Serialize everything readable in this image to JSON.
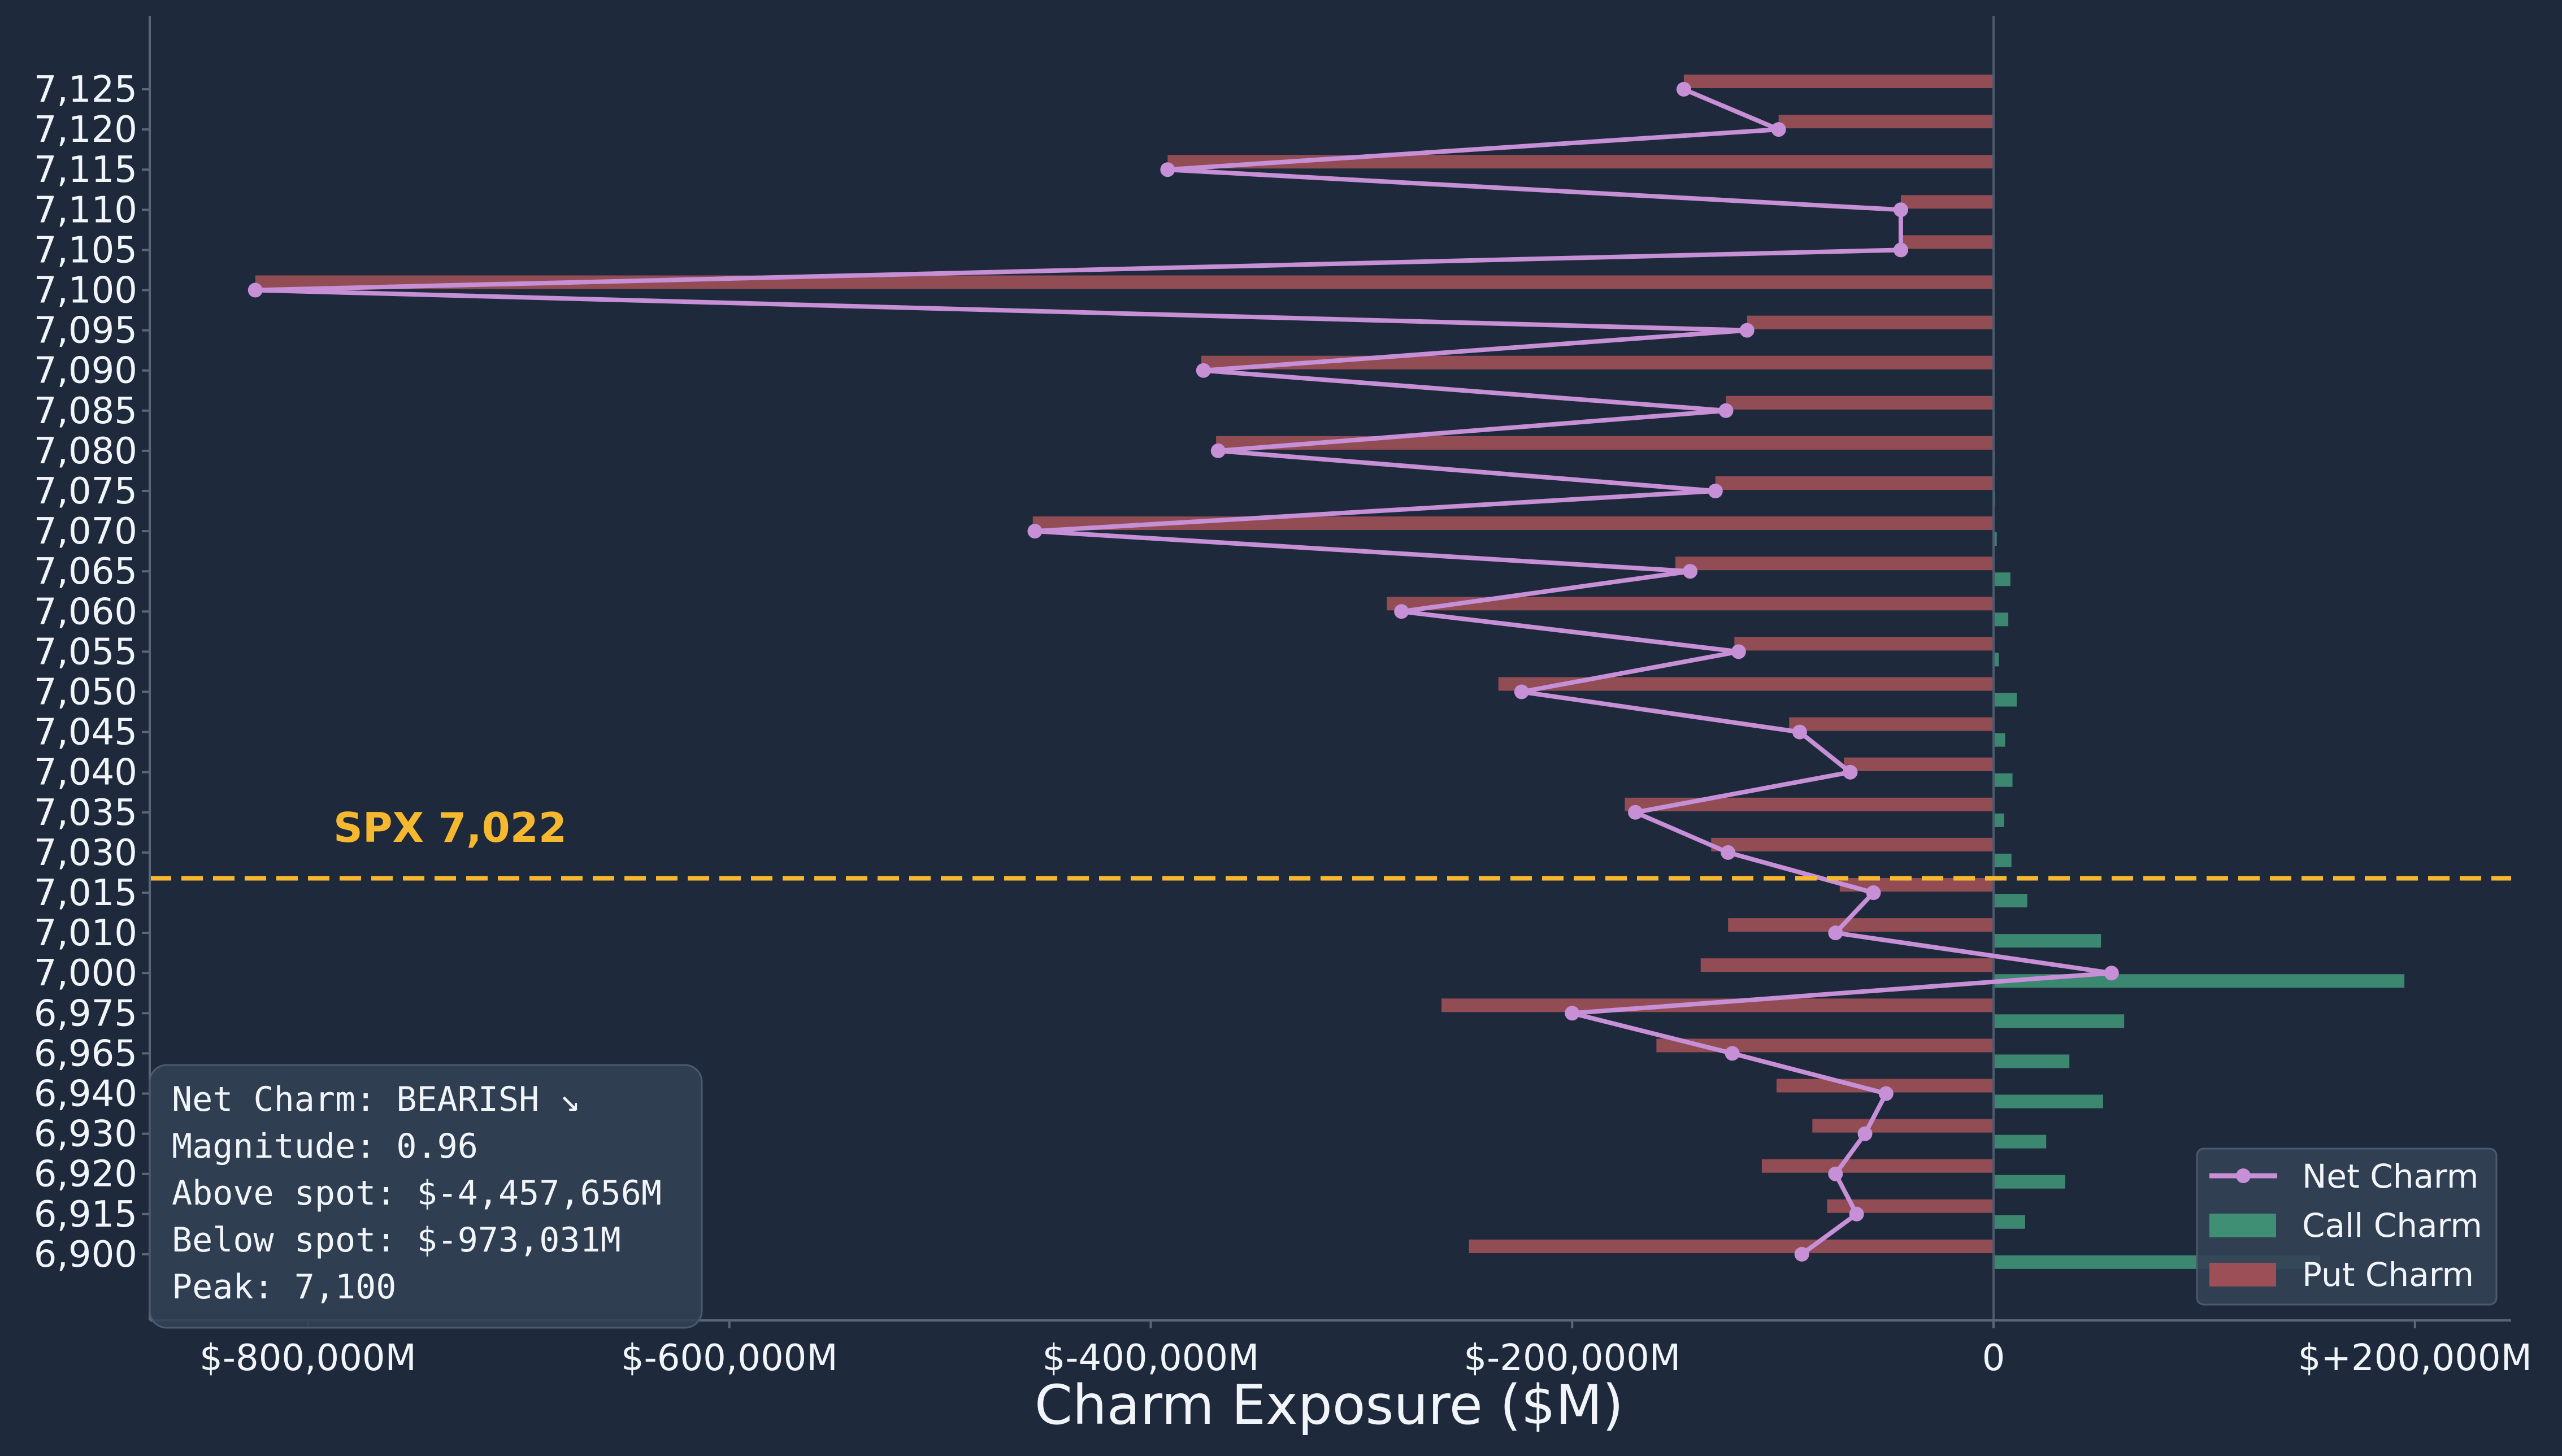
{
  "chart_data": {
    "type": "bar",
    "orientation": "horizontal",
    "xlabel": "Charm Exposure ($M)",
    "ylabel": "",
    "title": "",
    "xlim": [
      -825000,
      245000
    ],
    "x_ticks": [
      -800000,
      -600000,
      -400000,
      -200000,
      0,
      200000
    ],
    "x_tick_labels": [
      "$-800,000M",
      "$-600,000M",
      "$-400,000M",
      "$-200,000M",
      "0",
      "$+200,000M"
    ],
    "categories": [
      "7,125",
      "7,120",
      "7,115",
      "7,110",
      "7,105",
      "7,100",
      "7,095",
      "7,090",
      "7,085",
      "7,080",
      "7,075",
      "7,070",
      "7,065",
      "7,060",
      "7,055",
      "7,050",
      "7,045",
      "7,040",
      "7,035",
      "7,030",
      "7,015",
      "7,010",
      "7,000",
      "6,975",
      "6,965",
      "6,940",
      "6,930",
      "6,920",
      "6,915",
      "6,900"
    ],
    "series": [
      {
        "name": "Net Charm",
        "kind": "line",
        "color": "#c68fd6",
        "values": [
          -147000,
          -102000,
          -392000,
          -44000,
          -44000,
          -825000,
          -117000,
          -375000,
          -127000,
          -368000,
          -132000,
          -455000,
          -144000,
          -281000,
          -121000,
          -224000,
          -92000,
          -68000,
          -170000,
          -126000,
          -57000,
          -75000,
          56000,
          -200000,
          -124000,
          -51000,
          -61000,
          -75000,
          -65000,
          -91000
        ]
      },
      {
        "name": "Call Charm",
        "kind": "bar",
        "color": "#3f8f74",
        "values": [
          500,
          500,
          500,
          500,
          500,
          500,
          500,
          500,
          500,
          700,
          800,
          1500,
          8000,
          7000,
          2500,
          11000,
          5500,
          9000,
          5000,
          8500,
          16000,
          51000,
          195000,
          62000,
          36000,
          52000,
          25000,
          34000,
          15000,
          155000
        ]
      },
      {
        "name": "Put Charm",
        "kind": "bar",
        "color": "#9c4f56",
        "values": [
          -147000,
          -102000,
          -392000,
          -44000,
          -44000,
          -825000,
          -117000,
          -376000,
          -127000,
          -369000,
          -132000,
          -456000,
          -151000,
          -288000,
          -123000,
          -235000,
          -97000,
          -71000,
          -175000,
          -134000,
          -73000,
          -126000,
          -139000,
          -262000,
          -160000,
          -103000,
          -86000,
          -110000,
          -79000,
          -249000
        ]
      }
    ],
    "spot_line": {
      "label": "SPX 7,022",
      "color": "#f5b82e",
      "position_between": [
        "7,030",
        "7,015"
      ]
    },
    "legend": {
      "placement": "bottom-right"
    },
    "grid": false
  },
  "stats_box": {
    "lines": [
      "Net Charm: BEARISH ↘",
      "Magnitude: 0.96",
      "Above spot: $-4,457,656M",
      "Below spot: $-973,031M",
      "Peak: 7,100"
    ]
  },
  "colors": {
    "background": "#1e293b",
    "axis": "#5b6778",
    "text": "#f1f5f9",
    "legend_bg": "#334155",
    "stats_bg": "#334155"
  }
}
